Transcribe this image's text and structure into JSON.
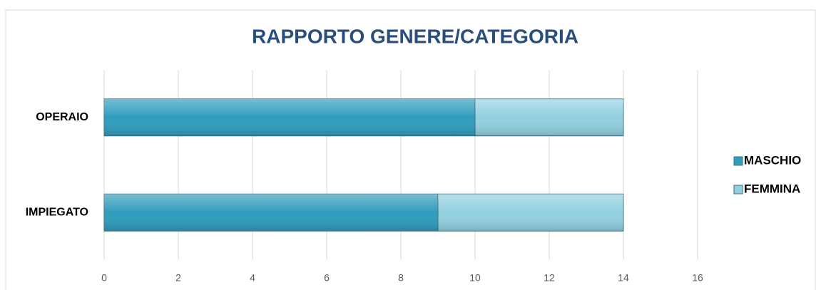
{
  "chart_data": {
    "type": "bar",
    "orientation": "horizontal",
    "stacked": true,
    "title": "RAPPORTO GENERE/CATEGORIA",
    "categories": [
      "OPERAIO",
      "IMPIEGATO"
    ],
    "series": [
      {
        "name": "MASCHIO",
        "color": "#2f9cbd",
        "values": [
          10,
          9
        ]
      },
      {
        "name": "FEMMINA",
        "color": "#92d0e0",
        "values": [
          4,
          5
        ]
      }
    ],
    "xlim": [
      0,
      16
    ],
    "xticks": [
      0,
      2,
      4,
      6,
      8,
      10,
      12,
      14,
      16
    ],
    "grid": true,
    "legend": "right"
  }
}
